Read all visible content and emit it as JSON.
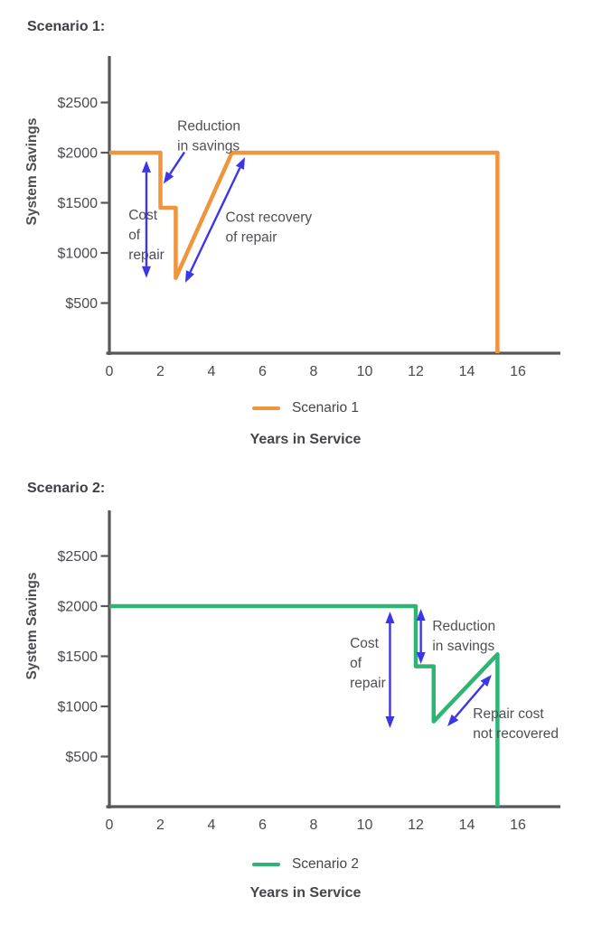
{
  "colors": {
    "scenario1_line": "#F0943E",
    "scenario2_line": "#2EB573",
    "annotation_arrow": "#3D36E8",
    "axis": "#58585B",
    "tick_text": "#4A4A4F",
    "annotation_text": "#4F4F54"
  },
  "chart_data": [
    {
      "type": "line",
      "title": "Scenario 1:",
      "xlabel": "Years in Service",
      "ylabel": "System Savings",
      "legend": [
        "Scenario 1"
      ],
      "legend_position": "bottom-center",
      "grid": false,
      "xlim": [
        0,
        17.7
      ],
      "ylim": [
        0,
        2950
      ],
      "xticks": [
        0,
        2,
        4,
        6,
        8,
        10,
        12,
        14,
        16
      ],
      "yticks": [
        500,
        1000,
        1500,
        2000,
        2500
      ],
      "ytick_labels": [
        "$500",
        "$1000",
        "$1500",
        "$2000",
        "$2500"
      ],
      "series": [
        {
          "name": "Scenario 1",
          "color": "#F0943E",
          "points": [
            [
              0,
              2000
            ],
            [
              2,
              2000
            ],
            [
              2,
              1450
            ],
            [
              2.6,
              1450
            ],
            [
              2.6,
              750
            ],
            [
              4.8,
              2000
            ],
            [
              15.2,
              2000
            ],
            [
              15.2,
              0
            ]
          ]
        }
      ],
      "annotations": [
        {
          "lines": [
            "Cost",
            "of",
            "repair"
          ],
          "x": 0.75,
          "y": 1440,
          "arrow": {
            "from": [
              1.45,
              1920
            ],
            "to": [
              1.45,
              750
            ],
            "double": true
          }
        },
        {
          "lines": [
            "Reduction",
            "in savings"
          ],
          "x": 2.66,
          "y": 2330,
          "arrow": {
            "from": [
              2.94,
              2005
            ],
            "to": [
              2.12,
              1690
            ],
            "double": false
          }
        },
        {
          "lines": [
            "Cost recovery",
            "of repair"
          ],
          "x": 4.55,
          "y": 1420,
          "arrow": {
            "from": [
              2.97,
              703
            ],
            "to": [
              5.31,
              1955
            ],
            "double": true
          }
        }
      ]
    },
    {
      "type": "line",
      "title": "Scenario 2:",
      "xlabel": "Years in Service",
      "ylabel": "System Savings",
      "legend": [
        "Scenario 2"
      ],
      "legend_position": "bottom-center",
      "grid": false,
      "xlim": [
        0,
        17.7
      ],
      "ylim": [
        0,
        2950
      ],
      "xticks": [
        0,
        2,
        4,
        6,
        8,
        10,
        12,
        14,
        16
      ],
      "yticks": [
        500,
        1000,
        1500,
        2000,
        2500
      ],
      "ytick_labels": [
        "$500",
        "$1000",
        "$1500",
        "$2000",
        "$2500"
      ],
      "series": [
        {
          "name": "Scenario 2",
          "color": "#2EB573",
          "points": [
            [
              0,
              2000
            ],
            [
              12,
              2000
            ],
            [
              12,
              1400
            ],
            [
              12.7,
              1400
            ],
            [
              12.7,
              850
            ],
            [
              15.2,
              1520
            ],
            [
              15.2,
              0
            ]
          ]
        }
      ],
      "annotations": [
        {
          "lines": [
            "Cost",
            "of",
            "repair"
          ],
          "x": 9.42,
          "y": 1694,
          "arrow": {
            "from": [
              10.99,
              1946
            ],
            "to": [
              10.99,
              784
            ],
            "double": true
          }
        },
        {
          "lines": [
            "Reduction",
            "in savings"
          ],
          "x": 12.65,
          "y": 1865,
          "arrow": {
            "from": [
              12.2,
              1973
            ],
            "to": [
              12.2,
              1423
            ],
            "double": true
          }
        },
        {
          "lines": [
            "Repair cost",
            "not recovered"
          ],
          "x": 14.24,
          "y": 991,
          "arrow": {
            "from": [
              13.24,
              802
            ],
            "to": [
              14.97,
              1315
            ],
            "double": true
          }
        }
      ]
    }
  ]
}
